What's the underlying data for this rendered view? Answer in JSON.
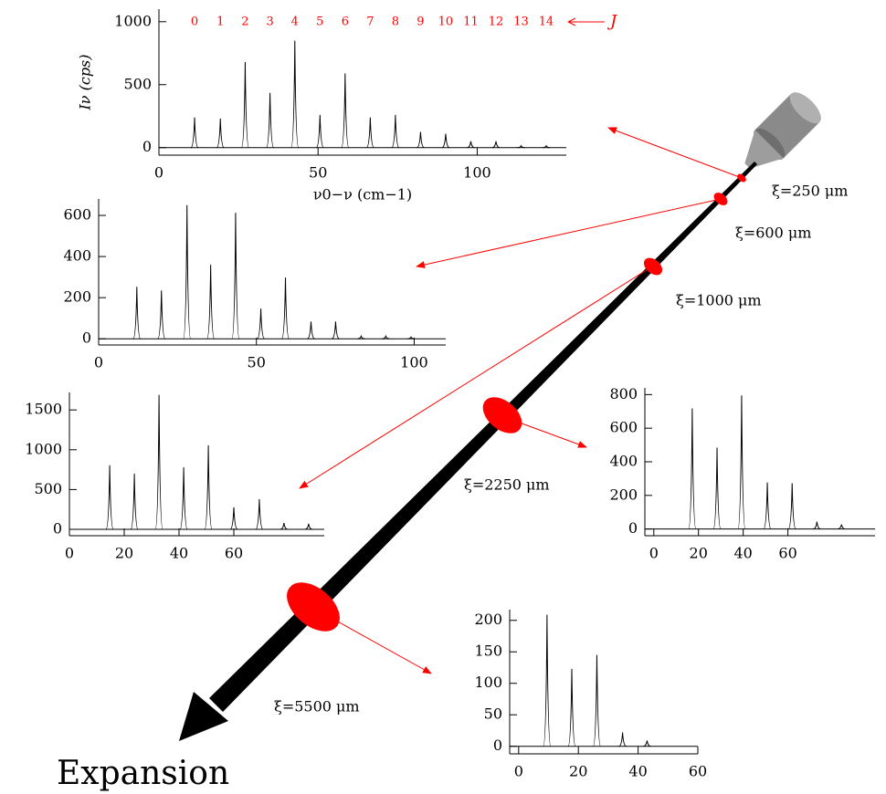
{
  "chart_data": [
    {
      "type": "spectrum",
      "y_label": "Iν (cps)",
      "x_label": "ν0−ν (cm−1)",
      "x": [
        11.2,
        19.3,
        27.1,
        34.9,
        42.7,
        50.6,
        58.5,
        66.4,
        74.3,
        82.2,
        90.1,
        98.0,
        105.9,
        113.8,
        121.7
      ],
      "values": [
        240,
        230,
        680,
        435,
        850,
        260,
        590,
        240,
        260,
        125,
        110,
        50,
        50,
        15,
        15
      ],
      "peak_labels": [
        0,
        1,
        2,
        3,
        4,
        5,
        6,
        7,
        8,
        9,
        10,
        11,
        12,
        13,
        14
      ],
      "peak_label_name": "J",
      "peak_label_color": "#ff0000",
      "xlim": [
        0,
        128
      ],
      "ylim": [
        -60,
        1100
      ],
      "xticks": [
        0,
        50,
        100
      ],
      "yticks": [
        0,
        500,
        1000
      ],
      "annotation": "ξ=250 μm",
      "color": "#000000"
    },
    {
      "type": "spectrum",
      "x": [
        12.1,
        19.9,
        28.0,
        35.5,
        43.4,
        51.4,
        59.2,
        67.3,
        75.1,
        83.2,
        91.0,
        99.0
      ],
      "values": [
        253,
        235,
        650,
        360,
        613,
        147,
        298,
        84,
        84,
        13,
        13,
        9
      ],
      "xlim": [
        0,
        110
      ],
      "ylim": [
        -30,
        680
      ],
      "xticks": [
        0,
        50,
        100
      ],
      "yticks": [
        0,
        200,
        400,
        600
      ],
      "annotation": "ξ=600 μm",
      "color": "#000000"
    },
    {
      "type": "spectrum",
      "x": [
        14.7,
        23.7,
        32.7,
        41.7,
        50.7,
        60.0,
        69.3,
        78.3,
        87.3
      ],
      "values": [
        805,
        700,
        1690,
        780,
        1057,
        276,
        379,
        80,
        69
      ],
      "xlim": [
        0,
        93
      ],
      "ylim": [
        -80,
        1720
      ],
      "xticks": [
        0,
        20,
        40,
        60
      ],
      "yticks": [
        0,
        500,
        1000,
        1500
      ],
      "annotation": "ξ=1000 μm",
      "color": "#000000"
    },
    {
      "type": "spectrum",
      "x": [
        17.2,
        28.3,
        39.3,
        50.8,
        61.9,
        73.0,
        84.0
      ],
      "values": [
        718,
        484,
        795,
        277,
        272,
        44,
        27
      ],
      "xlim": [
        -4,
        99
      ],
      "ylim": [
        -40,
        840
      ],
      "xticks": [
        0,
        20,
        40,
        60
      ],
      "yticks": [
        0,
        200,
        400,
        600,
        800
      ],
      "annotation": "ξ=2250 μm",
      "color": "#000000"
    },
    {
      "type": "spectrum",
      "x": [
        9.5,
        17.8,
        26.2,
        34.8,
        43.0
      ],
      "values": [
        209,
        123,
        145,
        22,
        9
      ],
      "xlim": [
        -3,
        60
      ],
      "ylim": [
        -12,
        217
      ],
      "xticks": [
        0,
        20,
        40,
        60
      ],
      "yticks": [
        0,
        50,
        100,
        150,
        200
      ],
      "annotation": "ξ=5500 μm",
      "color": "#000000"
    }
  ],
  "diagram": {
    "label": "Expansion"
  }
}
